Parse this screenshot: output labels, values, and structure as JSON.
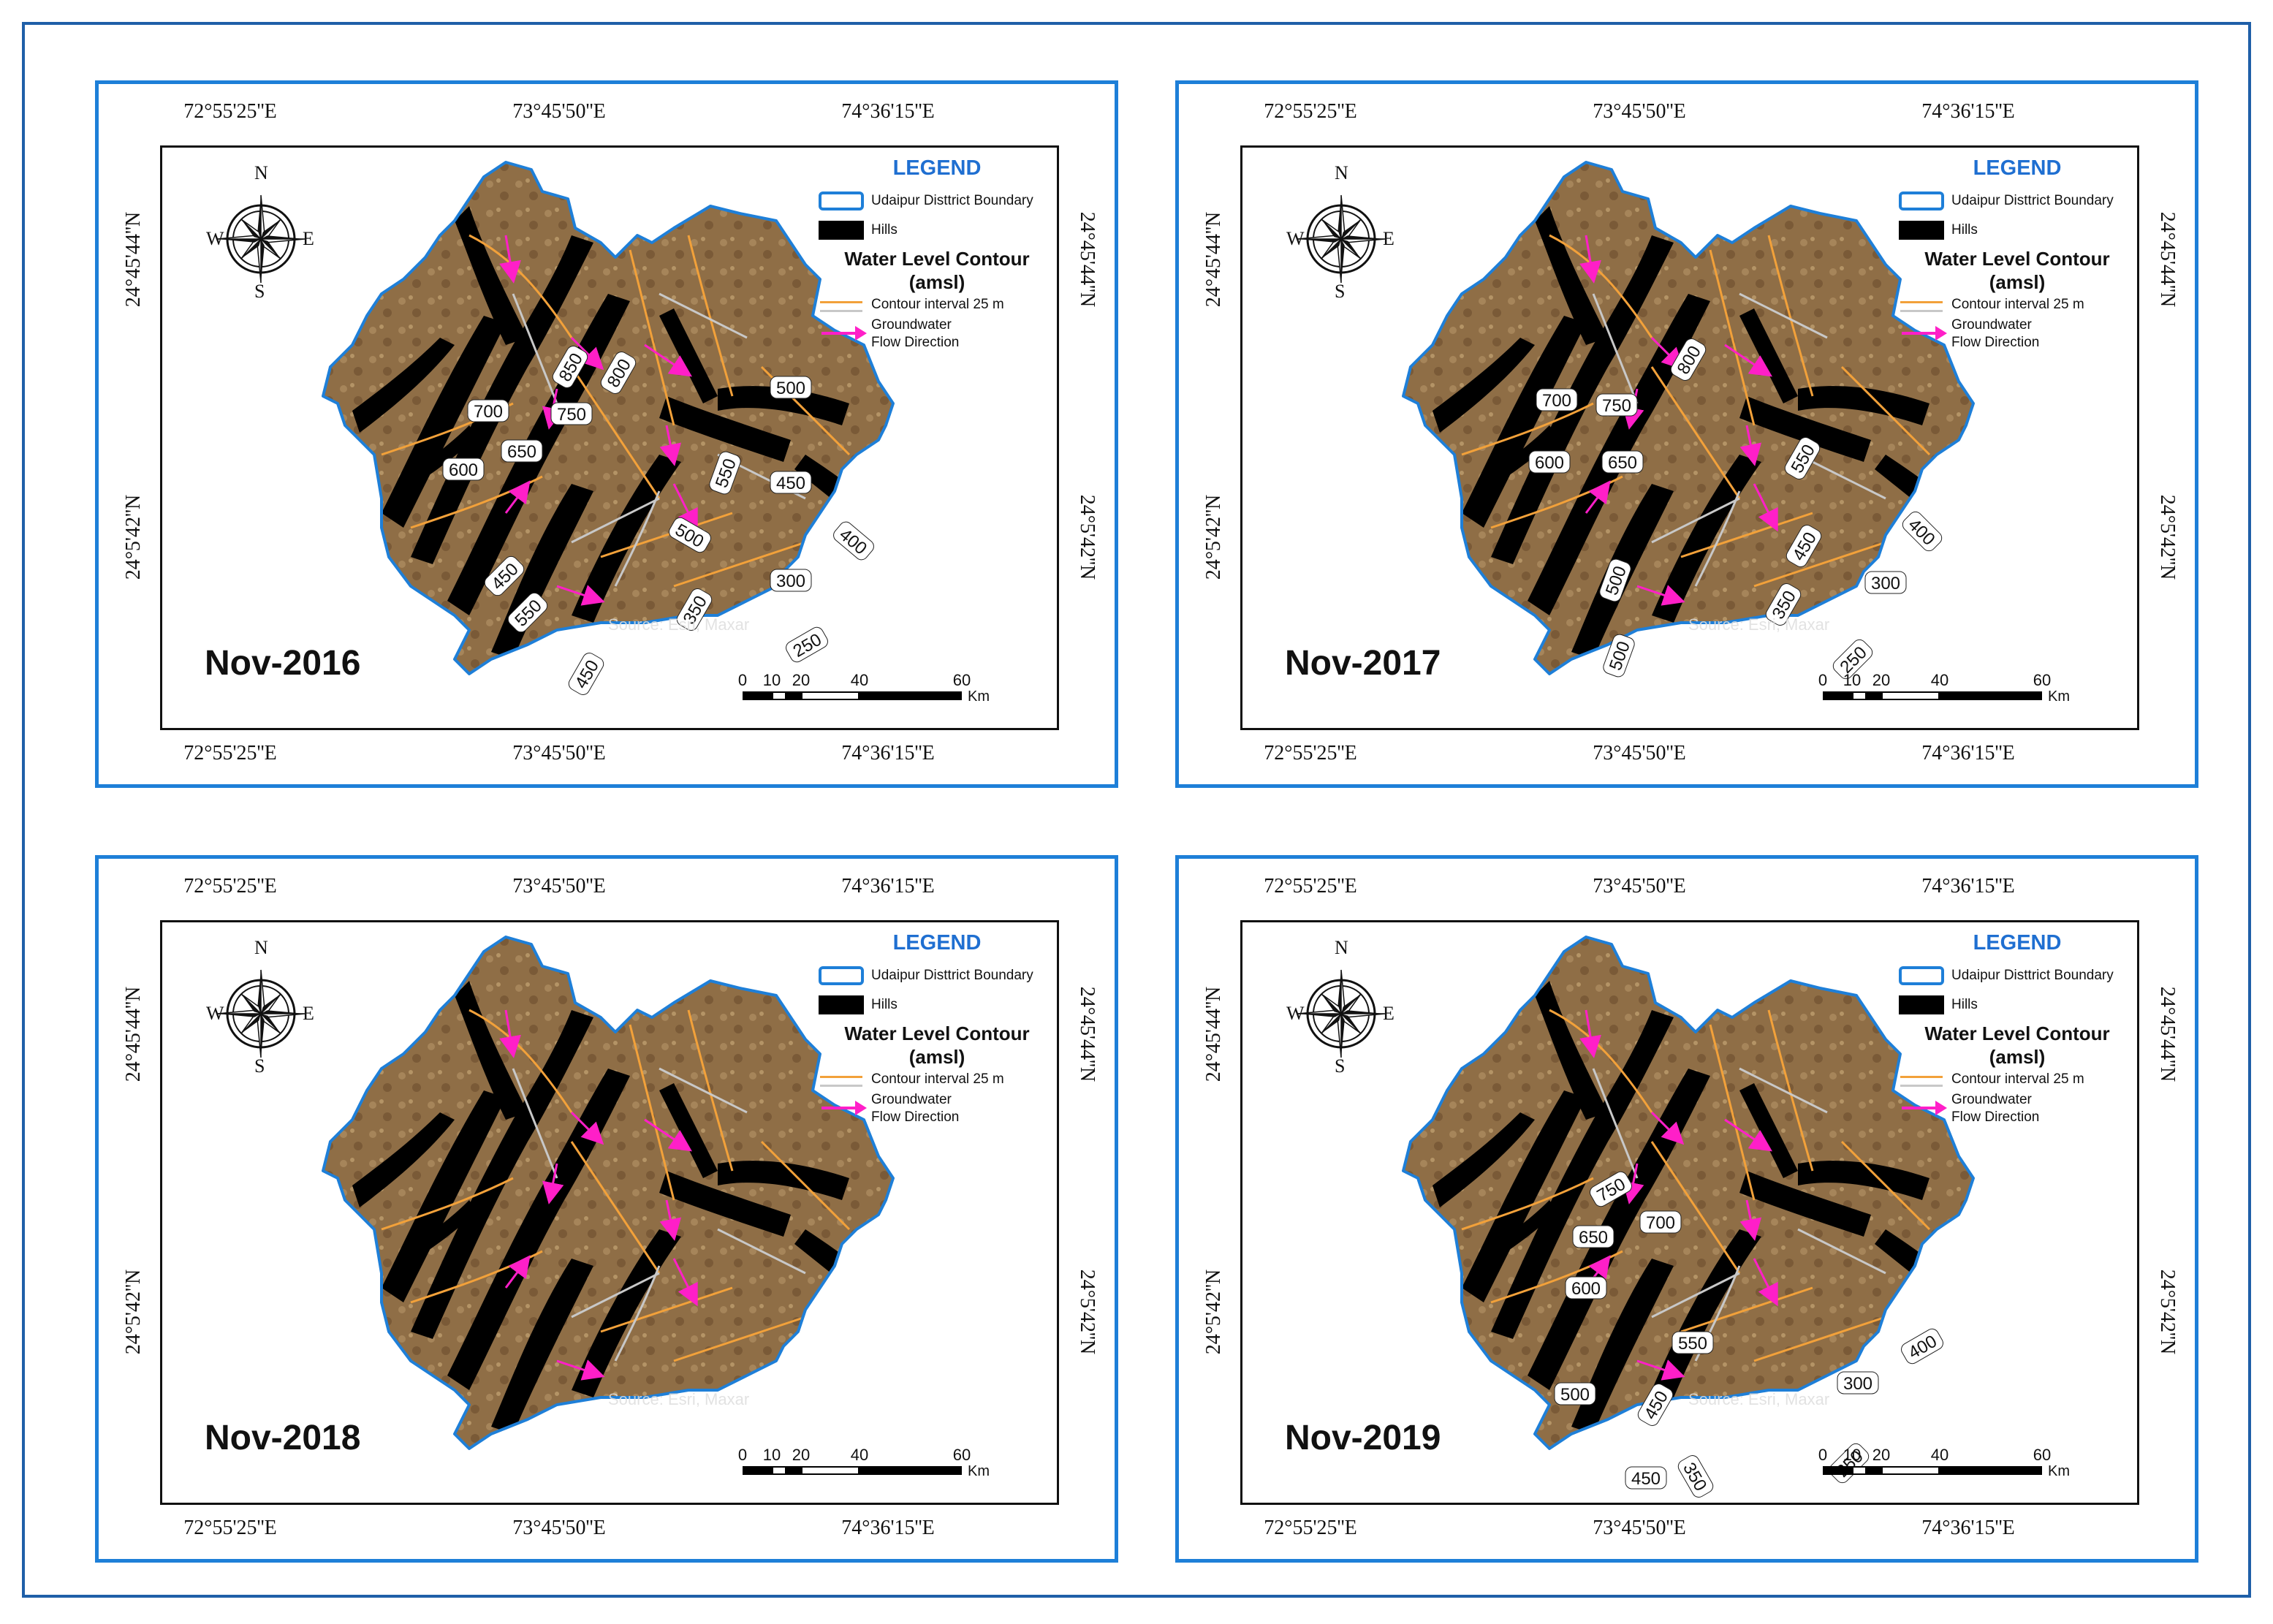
{
  "coords": {
    "lon": [
      "72°55'25''E",
      "73°45'50''E",
      "74°36'15''E"
    ],
    "lat": [
      "24°45'44''N",
      "24°5'42''N"
    ]
  },
  "legend": {
    "title": "LEGEND",
    "boundary": "Udaipur Disttrict Boundary",
    "hills": "Hills",
    "contour_title_1": "Water Level Contour",
    "contour_title_2": "(amsl)",
    "contour_interval": "Contour interval 25 m",
    "flow_1": "Groundwater",
    "flow_2": "Flow Direction"
  },
  "compass": {
    "n": "N",
    "s": "S",
    "e": "E",
    "w": "W"
  },
  "scale": {
    "ticks": [
      "0",
      "10",
      "20",
      "40",
      "60"
    ],
    "unit": "Km"
  },
  "source": "Source: Esri, Maxar",
  "colors": {
    "contour": "#f2a13a",
    "contour_alt": "#c8c8c8",
    "flow_arrow": "#ff1fc8",
    "boundary": "#1e7fd8",
    "terrain": "#8a6b45",
    "hills": "#000000"
  },
  "panels": [
    {
      "year": "Nov-2016",
      "labels": [
        "850",
        "800",
        "700",
        "750",
        "650",
        "600",
        "500",
        "550",
        "450",
        "500",
        "400",
        "300",
        "450",
        "550",
        "350",
        "250",
        "450"
      ]
    },
    {
      "year": "Nov-2017",
      "labels": [
        "800",
        "700",
        "750",
        "600",
        "650",
        "550",
        "400",
        "450",
        "300",
        "500",
        "350",
        "500",
        "250"
      ]
    },
    {
      "year": "Nov-2018",
      "labels": []
    },
    {
      "year": "Nov-2019",
      "labels": [
        "750",
        "700",
        "650",
        "600",
        "550",
        "400",
        "300",
        "500",
        "450",
        "250",
        "450",
        "350"
      ]
    }
  ]
}
